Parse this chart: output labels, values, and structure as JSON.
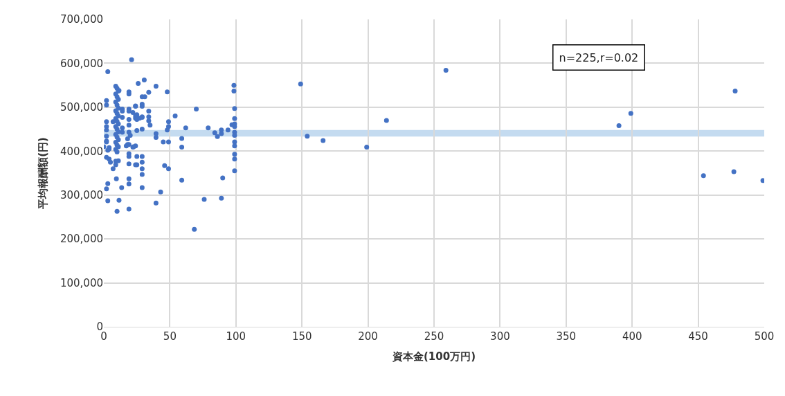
{
  "chart_data": {
    "type": "scatter",
    "xlabel": "資本金(100万円)",
    "ylabel": "平均報酬額(円)",
    "annotations": [
      "n=225,r=0.02"
    ],
    "x": [
      149,
      199,
      214,
      259,
      154,
      166,
      390,
      399,
      454,
      477,
      478,
      499,
      30.6,
      26,
      39.5,
      48,
      34,
      29,
      31,
      29,
      29,
      24,
      34,
      24,
      24,
      34,
      29,
      34,
      35,
      70,
      54,
      49,
      49,
      48,
      62,
      79,
      84,
      86,
      89,
      89,
      94,
      98.5,
      98.5,
      99,
      99,
      99,
      99,
      97,
      99,
      99,
      99,
      99,
      99,
      99,
      99,
      39.5,
      39.5,
      45,
      49,
      59,
      59,
      24,
      25,
      29,
      29,
      25,
      29,
      29,
      46,
      49,
      59,
      90,
      29,
      43,
      39.5,
      76,
      89,
      68.5,
      21,
      3,
      2,
      2,
      19,
      19,
      11.5,
      14,
      14,
      19,
      19,
      24,
      2,
      2,
      2,
      2,
      2,
      14,
      19,
      22,
      25,
      27,
      29,
      25,
      14,
      19,
      19,
      25,
      29,
      14,
      20,
      18,
      7,
      0,
      4,
      18,
      22.5,
      9,
      10,
      11,
      9,
      10,
      11,
      9,
      10,
      11,
      9,
      10,
      11,
      9,
      10,
      11,
      9,
      10,
      11,
      9,
      10,
      11,
      9,
      10,
      11,
      9,
      10,
      2,
      3,
      4,
      17,
      19,
      22,
      2,
      4,
      5,
      9,
      11,
      9,
      7,
      19,
      19,
      19,
      24,
      9.5,
      19,
      19,
      3,
      2,
      13.5,
      3,
      11.5,
      10,
      19
    ],
    "values": [
      553000,
      409000,
      470000,
      584000,
      434000,
      424000,
      458000,
      486000,
      344000,
      353000,
      537000,
      333000,
      562000,
      554000,
      548000,
      535000,
      534000,
      524000,
      524000,
      507000,
      502000,
      502000,
      491000,
      480000,
      475000,
      478000,
      477000,
      469000,
      459000,
      496000,
      480000,
      467000,
      456000,
      448000,
      453000,
      453000,
      442000,
      433000,
      448000,
      440000,
      448000,
      550000,
      537000,
      497000,
      474000,
      462000,
      456000,
      460000,
      443000,
      436000,
      421000,
      412000,
      393000,
      382000,
      355000,
      440000,
      431000,
      421000,
      421000,
      429000,
      409000,
      412000,
      388000,
      388000,
      375000,
      369000,
      360000,
      347000,
      367000,
      360000,
      334000,
      339000,
      317000,
      307000,
      282000,
      290000,
      293000,
      222000,
      608000,
      581000,
      515000,
      505000,
      535000,
      530000,
      538000,
      496000,
      491000,
      496000,
      491000,
      503000,
      467000,
      456000,
      448000,
      434000,
      423000,
      477000,
      472000,
      488000,
      483000,
      475000,
      478000,
      472000,
      453000,
      459000,
      443000,
      447000,
      450000,
      443000,
      436000,
      428000,
      467000,
      410000,
      408000,
      415000,
      410000,
      548000,
      543000,
      537000,
      530000,
      524000,
      518000,
      512000,
      505000,
      498000,
      492000,
      486000,
      480000,
      474000,
      468000,
      462000,
      456000,
      450000,
      444000,
      438000,
      432000,
      426000,
      420000,
      414000,
      410000,
      404000,
      398000,
      421000,
      402000,
      405000,
      412000,
      415000,
      409000,
      386000,
      382000,
      375000,
      377000,
      378000,
      369000,
      360000,
      394000,
      388000,
      371000,
      369000,
      337000,
      337000,
      325000,
      326000,
      314000,
      317000,
      287000,
      288000,
      263000,
      268000
    ],
    "color": "#4472c4",
    "marker": "circle",
    "xlim": [
      0,
      500
    ],
    "xticks": [
      0,
      50,
      100,
      150,
      200,
      250,
      300,
      350,
      400,
      450,
      500
    ],
    "ylim": [
      0,
      700000
    ],
    "yticks": [
      {
        "value": 0,
        "label": "0"
      },
      {
        "value": 100000,
        "label": "100,000"
      },
      {
        "value": 200000,
        "label": "200,000"
      },
      {
        "value": 300000,
        "label": "300,000"
      },
      {
        "value": 400000,
        "label": "400,000"
      },
      {
        "value": 500000,
        "label": "500,000"
      },
      {
        "value": 600000,
        "label": "600,000"
      },
      {
        "value": 700000,
        "label": "700,000"
      }
    ],
    "bands": [
      {
        "axis": "y",
        "from": 433000,
        "to": 448000,
        "color": "#9dc3e6"
      }
    ],
    "grid": true
  }
}
